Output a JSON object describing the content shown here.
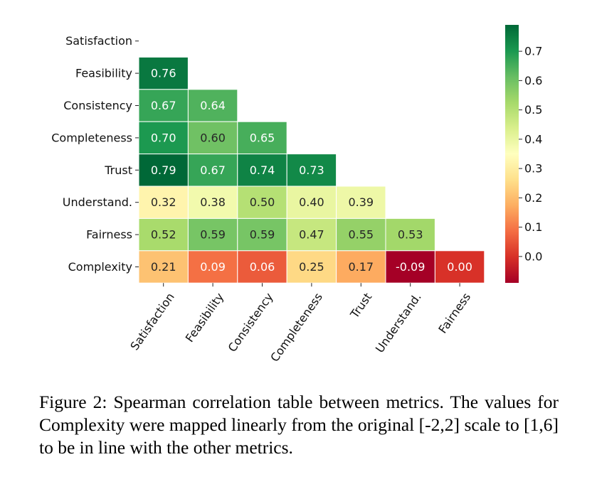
{
  "chart_data": {
    "type": "heatmap",
    "mask": "upper-triangle",
    "rows": [
      "Satisfaction",
      "Feasibility",
      "Consistency",
      "Completeness",
      "Trust",
      "Understand.",
      "Fairness",
      "Complexity"
    ],
    "columns": [
      "Satisfaction",
      "Feasibility",
      "Consistency",
      "Completeness",
      "Trust",
      "Understand.",
      "Fairness"
    ],
    "values": [
      [],
      [
        0.76
      ],
      [
        0.67,
        0.64
      ],
      [
        0.7,
        0.6,
        0.65
      ],
      [
        0.79,
        0.67,
        0.74,
        0.73
      ],
      [
        0.32,
        0.38,
        0.5,
        0.4,
        0.39
      ],
      [
        0.52,
        0.59,
        0.59,
        0.47,
        0.55,
        0.53
      ],
      [
        0.21,
        0.09,
        0.06,
        0.25,
        0.17,
        -0.09,
        0.0
      ]
    ],
    "value_labels": [
      [],
      [
        "0.76"
      ],
      [
        "0.67",
        "0.64"
      ],
      [
        "0.70",
        "0.60",
        "0.65"
      ],
      [
        "0.79",
        "0.67",
        "0.74",
        "0.73"
      ],
      [
        "0.32",
        "0.38",
        "0.50",
        "0.40",
        "0.39"
      ],
      [
        "0.52",
        "0.59",
        "0.59",
        "0.47",
        "0.55",
        "0.53"
      ],
      [
        "0.21",
        "0.09",
        "0.06",
        "0.25",
        "0.17",
        "-0.09",
        "0.00"
      ]
    ],
    "colormap": "RdYlGn",
    "colorbar": {
      "min": -0.09,
      "max": 0.79,
      "ticks": [
        0.0,
        0.1,
        0.2,
        0.3,
        0.4,
        0.5,
        0.6,
        0.7
      ],
      "tick_labels": [
        "0.0",
        "0.1",
        "0.2",
        "0.3",
        "0.4",
        "0.5",
        "0.6",
        "0.7"
      ],
      "placement": "right"
    },
    "title": "",
    "xlabel": "",
    "ylabel": ""
  },
  "caption": "Figure 2: Spearman correlation table between metrics. The values for Complexity were mapped linearly from the original [-2,2] scale to [1,6] to be in line with the other metrics."
}
